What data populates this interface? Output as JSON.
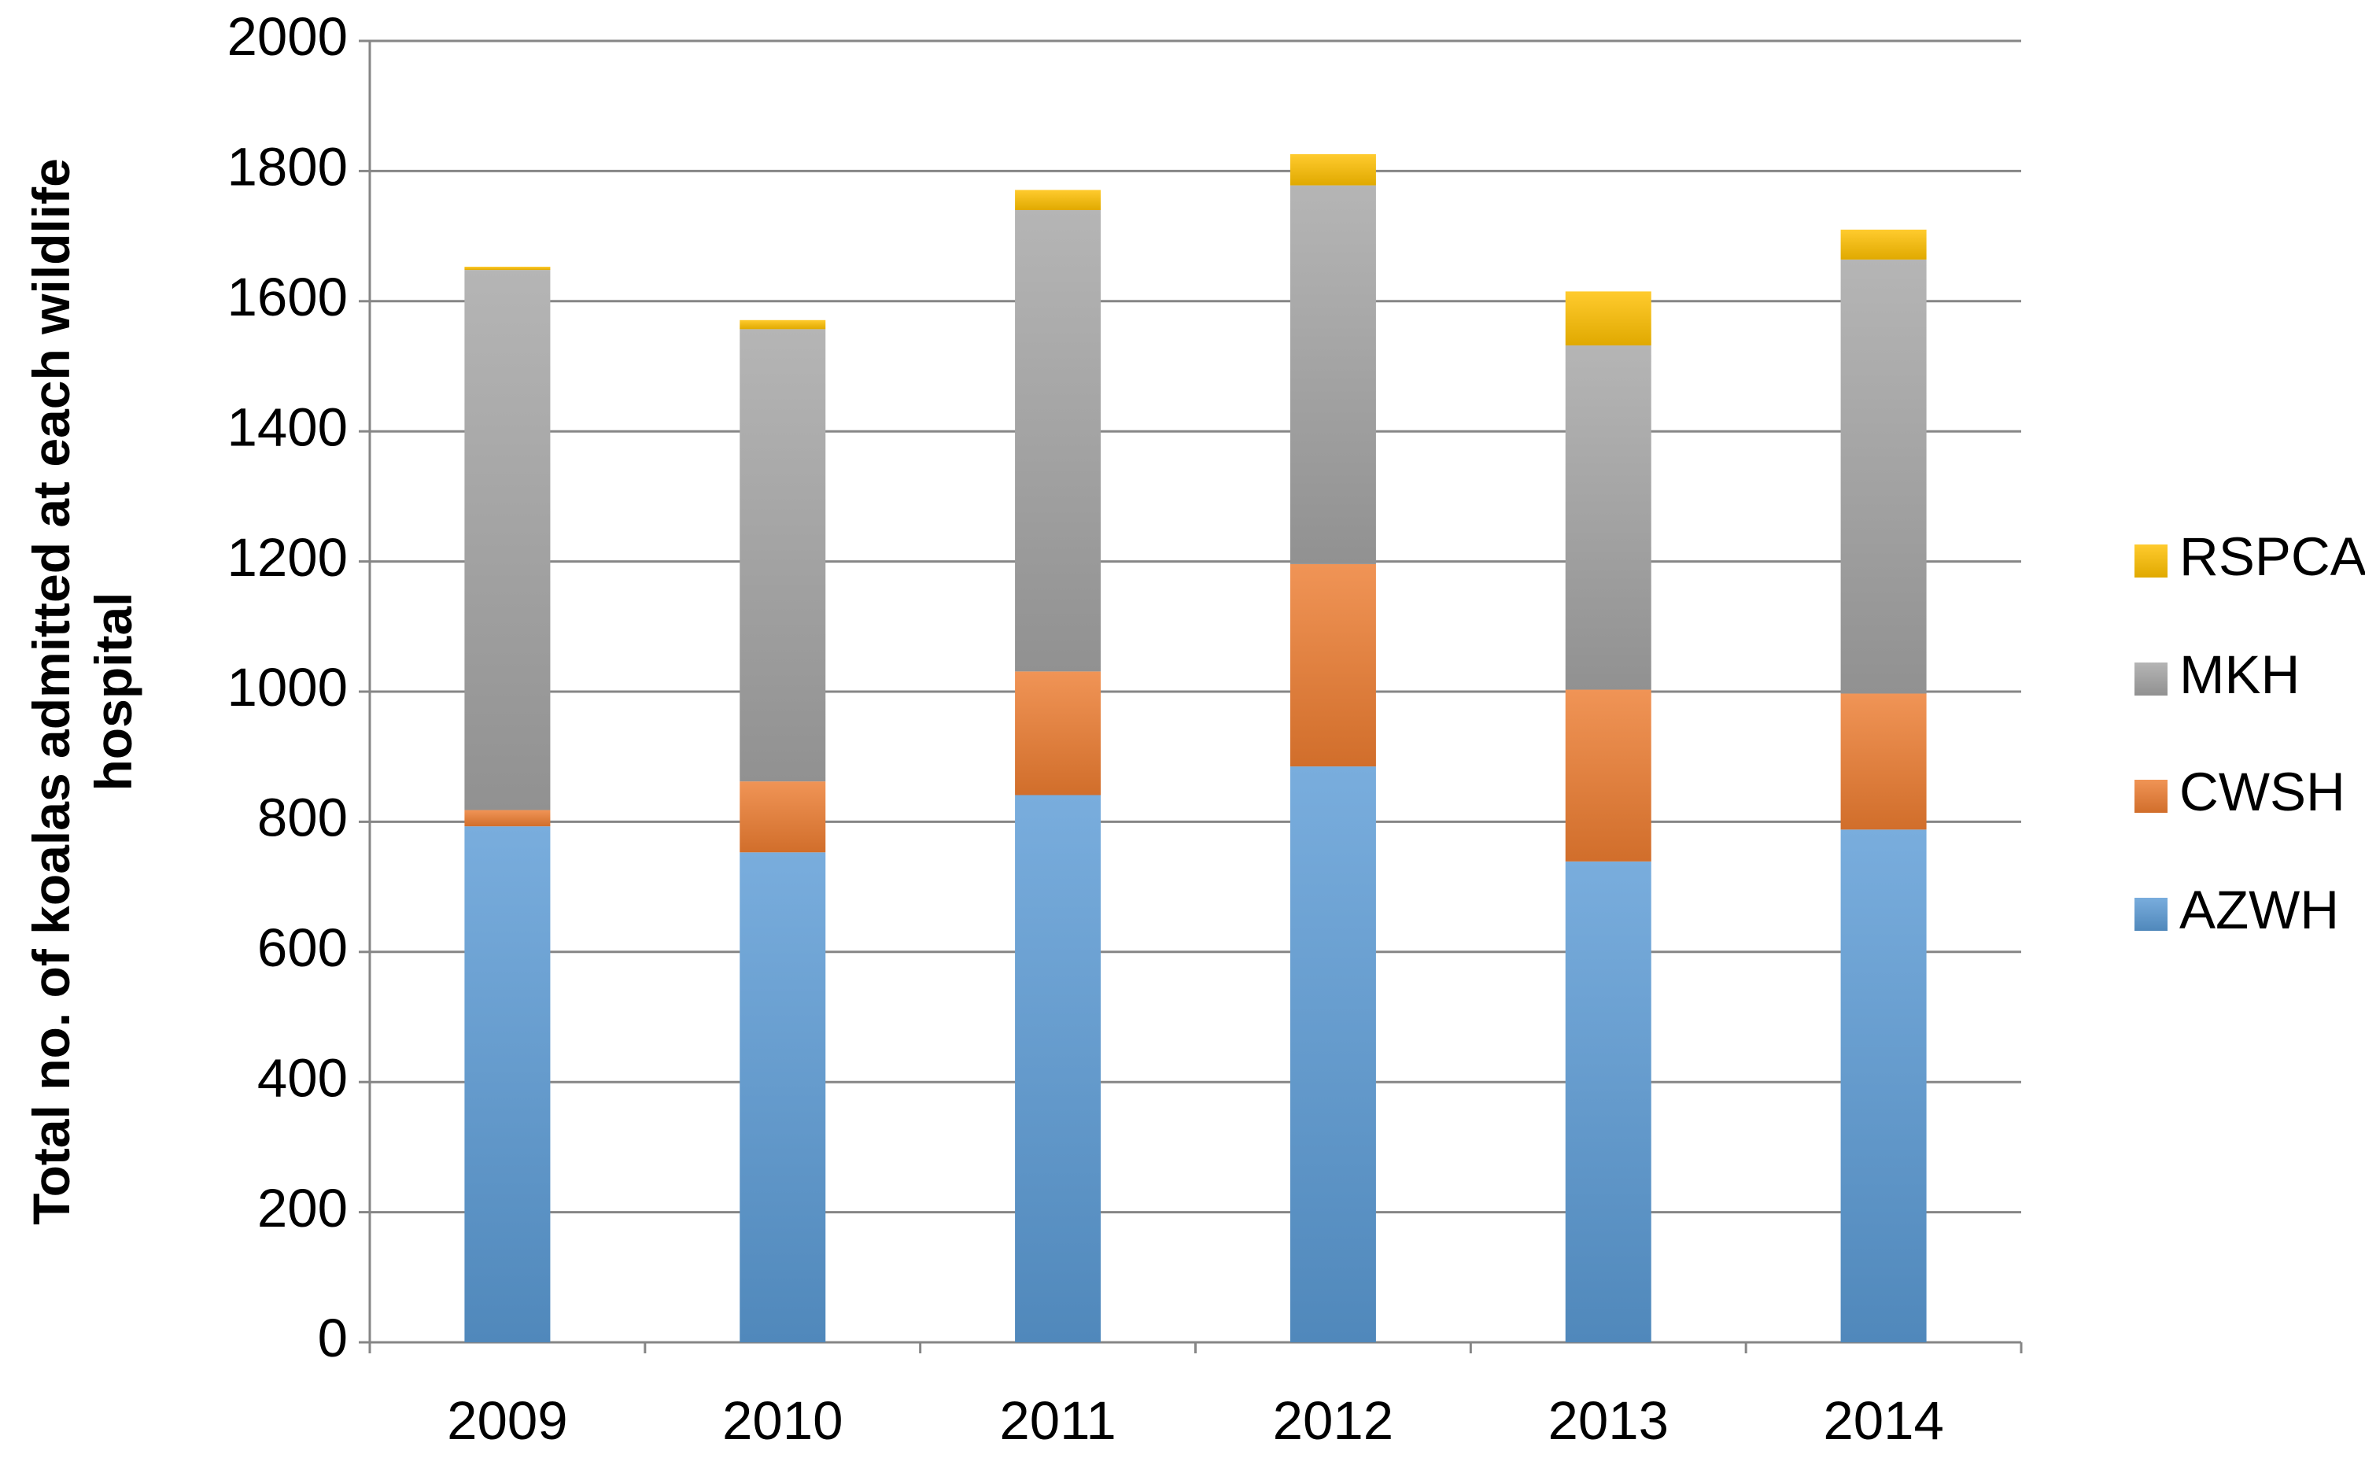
{
  "chart_data": {
    "type": "stacked_bar",
    "y_label": "Total no. of koalas admitted at each wildlife hospital",
    "categories": [
      "2009",
      "2010",
      "2011",
      "2012",
      "2013",
      "2014"
    ],
    "series": [
      {
        "name": "AZWH",
        "color": "#5b9bd5",
        "values": [
          793,
          753,
          841,
          885,
          739,
          788
        ]
      },
      {
        "name": "CWSH",
        "color": "#ed7d31",
        "values": [
          25,
          109,
          190,
          311,
          264,
          209
        ]
      },
      {
        "name": "MKH",
        "color": "#a5a5a5",
        "values": [
          830,
          695,
          709,
          582,
          529,
          667
        ]
      },
      {
        "name": "RSPCA",
        "color": "#ffc000",
        "values": [
          5,
          14,
          31,
          48,
          83,
          46
        ]
      }
    ],
    "ylim": [
      0,
      2000
    ],
    "yticks": [
      0,
      200,
      400,
      600,
      800,
      1000,
      1200,
      1400,
      1600,
      1800,
      2000
    ],
    "grid": true,
    "legend": "right"
  }
}
